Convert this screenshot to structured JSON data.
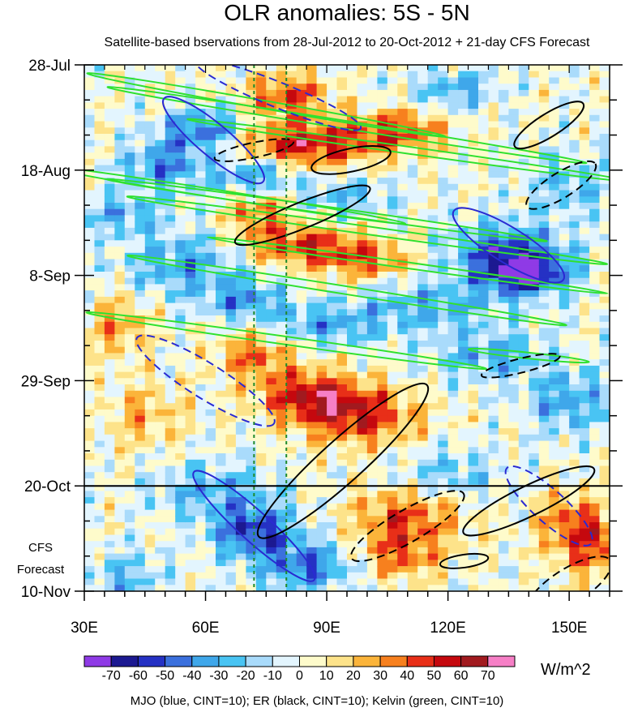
{
  "chart_data": {
    "type": "heatmap",
    "title": "OLR anomalies: 5S - 5N",
    "subtitle": "Satellite-based bservations from 28-Jul-2012 to 20-Oct-2012 + 21-day CFS Forecast",
    "x_ticks": [
      "30E",
      "60E",
      "90E",
      "120E",
      "150E"
    ],
    "x_tick_values": [
      30,
      60,
      90,
      120,
      150
    ],
    "xlim": [
      30,
      160
    ],
    "y_ticks": [
      "28-Jul",
      "18-Aug",
      "8-Sep",
      "29-Sep",
      "20-Oct",
      "10-Nov"
    ],
    "y_tick_days": [
      0,
      21,
      42,
      63,
      84,
      105
    ],
    "ylim_days": [
      0,
      105
    ],
    "observation_end": "20-Oct",
    "forecast_label": [
      "CFS",
      "Forecast"
    ],
    "reference_lines_lon": [
      72,
      80
    ],
    "colorbar": {
      "levels": [
        "-70",
        "-60",
        "-50",
        "-40",
        "-30",
        "-20",
        "-10",
        "0",
        "10",
        "20",
        "30",
        "40",
        "50",
        "60",
        "70"
      ],
      "colors": [
        "#8f3ae6",
        "#1c1991",
        "#2531c4",
        "#3b70dd",
        "#3fa7ea",
        "#49c4f3",
        "#a9dbfb",
        "#e3f5fe",
        "#fefbcb",
        "#fde38a",
        "#fbb43a",
        "#f7801e",
        "#e82f18",
        "#c5080e",
        "#a11a1f",
        "#f67fc6"
      ],
      "unit": "W/m^2"
    },
    "footnote": "MJO (blue, CINT=10); ER (black, CINT=10); Kelvin (green, CINT=10)",
    "series": [
      {
        "name": "MJO",
        "color": "#2a2ad2"
      },
      {
        "name": "ER",
        "color": "#000000"
      },
      {
        "name": "Kelvin",
        "color": "#2fe12f"
      }
    ]
  }
}
